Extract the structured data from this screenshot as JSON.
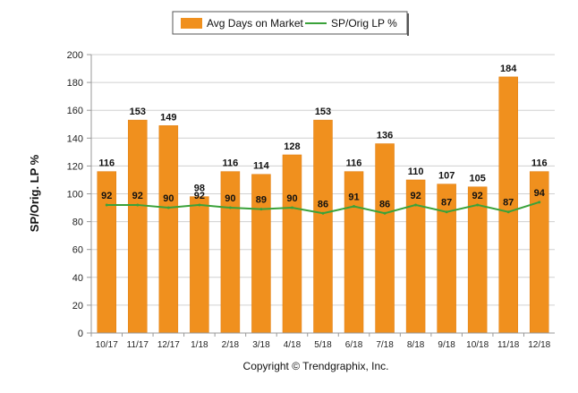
{
  "colors": {
    "bar": "#F0901E",
    "bar_edge": "#E07E10",
    "line": "#3AA23A",
    "grid": "#D0D0D0",
    "axis": "#999999"
  },
  "legend": {
    "items": [
      {
        "label": "Avg Days on Market",
        "kind": "bar"
      },
      {
        "label": "SP/Orig LP %",
        "kind": "line"
      }
    ]
  },
  "footer": "Copyright © Trendgraphix, Inc.",
  "chart_data": {
    "type": "bar",
    "title": "",
    "xlabel": "",
    "ylabel": "SP/Orig. LP %",
    "ylim": [
      0,
      200
    ],
    "yticks": [
      0,
      20,
      40,
      60,
      80,
      100,
      120,
      140,
      160,
      180,
      200
    ],
    "grid": true,
    "legend_position": "top-center",
    "categories": [
      "10/17",
      "11/17",
      "12/17",
      "1/18",
      "2/18",
      "3/18",
      "4/18",
      "5/18",
      "6/18",
      "7/18",
      "8/18",
      "9/18",
      "10/18",
      "11/18",
      "12/18"
    ],
    "series": [
      {
        "name": "Avg Days on Market",
        "type": "bar",
        "values": [
          116,
          153,
          149,
          98,
          116,
          114,
          128,
          153,
          116,
          136,
          110,
          107,
          105,
          184,
          116
        ]
      },
      {
        "name": "SP/Orig LP %",
        "type": "line",
        "values": [
          92,
          92,
          90,
          92,
          90,
          89,
          90,
          86,
          91,
          86,
          92,
          87,
          92,
          87,
          94
        ]
      }
    ]
  }
}
